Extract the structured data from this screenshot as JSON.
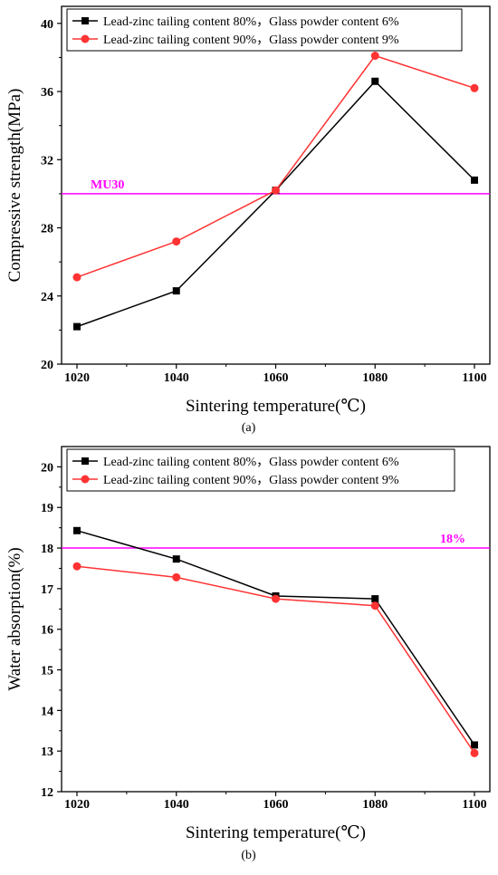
{
  "chart_data": [
    {
      "type": "line",
      "panel_label": "(a)",
      "x": [
        1020,
        1040,
        1060,
        1080,
        1100
      ],
      "x_tick_labels": [
        "1020",
        "1040",
        "1060",
        "1080",
        "1100"
      ],
      "xlabel": "Sintering temperature(℃)",
      "ylabel": "Compressive strength(MPa)",
      "ylim": [
        20,
        41
      ],
      "y_ticks": [
        20,
        24,
        28,
        32,
        36,
        40
      ],
      "y_tick_labels": [
        "20",
        "24",
        "28",
        "32",
        "36",
        "40"
      ],
      "series": [
        {
          "name": "Lead-zinc tailing content 80%，Glass powder content 6%",
          "marker": "square",
          "color": "#000000",
          "values": [
            22.2,
            24.3,
            30.2,
            36.6,
            30.8
          ]
        },
        {
          "name": "Lead-zinc tailing content 90%，Glass powder content 9%",
          "marker": "circle",
          "color": "#ff3333",
          "values": [
            25.1,
            27.2,
            30.2,
            38.1,
            36.2
          ]
        }
      ],
      "reference_line": {
        "value": 30,
        "label": "MU30",
        "color": "#ff00ff"
      },
      "legend_position": "top-left",
      "grid": false
    },
    {
      "type": "line",
      "panel_label": "(b)",
      "x": [
        1020,
        1040,
        1060,
        1080,
        1100
      ],
      "x_tick_labels": [
        "1020",
        "1040",
        "1060",
        "1080",
        "1100"
      ],
      "xlabel": "Sintering temperature(℃)",
      "ylabel": "Water absorption(%)",
      "ylim": [
        12,
        20.5
      ],
      "y_ticks": [
        12,
        13,
        14,
        15,
        16,
        17,
        18,
        19,
        20
      ],
      "y_tick_labels": [
        "12",
        "13",
        "14",
        "15",
        "16",
        "17",
        "18",
        "19",
        "20"
      ],
      "series": [
        {
          "name": "Lead-zinc tailing content 80%，Glass powder content 6%",
          "marker": "square",
          "color": "#000000",
          "values": [
            18.43,
            17.73,
            16.82,
            16.75,
            13.15
          ]
        },
        {
          "name": "Lead-zinc tailing content 90%，Glass powder content 9%",
          "marker": "circle",
          "color": "#ff3333",
          "values": [
            17.55,
            17.28,
            16.75,
            16.58,
            12.95
          ]
        }
      ],
      "reference_line": {
        "value": 18,
        "label": "18%",
        "color": "#ff00ff"
      },
      "legend_position": "top-left",
      "grid": false
    }
  ]
}
